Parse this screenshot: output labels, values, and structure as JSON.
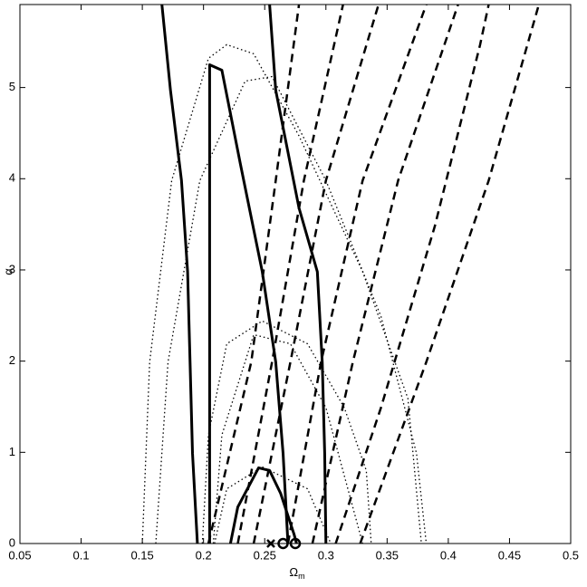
{
  "chart_data": {
    "type": "contour",
    "xlabel": {
      "text": "Ω",
      "subscript": "m"
    },
    "ylabel": "α",
    "xlim": [
      0.05,
      0.5
    ],
    "ylim": [
      0,
      5.91
    ],
    "xticks": [
      0.05,
      0.1,
      0.15,
      0.2,
      0.25,
      0.3,
      0.35,
      0.4,
      0.45,
      0.5
    ],
    "yticks": [
      0,
      1,
      2,
      3,
      4,
      5
    ],
    "series": [
      {
        "style": "solid",
        "x": [
          0.166,
          0.173,
          0.182,
          0.187,
          0.189,
          0.191,
          0.195
        ],
        "values": [
          5.91,
          4.97,
          3.98,
          2.98,
          1.99,
          0.99,
          0
        ]
      },
      {
        "style": "solid",
        "x": [
          0.205,
          0.205,
          0.205,
          0.215,
          0.23,
          0.248,
          0.259,
          0.265,
          0.269
        ],
        "values": [
          0,
          2.98,
          5.25,
          5.19,
          4.17,
          2.98,
          1.99,
          0.99,
          0
        ]
      },
      {
        "style": "solid",
        "x": [
          0.254,
          0.259,
          0.278,
          0.293,
          0.297,
          0.299,
          0.3
        ],
        "values": [
          5.91,
          4.97,
          3.68,
          2.98,
          1.99,
          0.99,
          0
        ]
      },
      {
        "style": "solid",
        "x": [
          0.222,
          0.228,
          0.245,
          0.254,
          0.263,
          0.274,
          0.276
        ],
        "values": [
          0,
          0.4,
          0.83,
          0.8,
          0.55,
          0.1,
          0
        ]
      },
      {
        "style": "dotted",
        "x": [
          0.15,
          0.156,
          0.174,
          0.204,
          0.219,
          0.241,
          0.278,
          0.33,
          0.367,
          0.378
        ],
        "values": [
          0,
          1.99,
          3.98,
          5.32,
          5.47,
          5.37,
          4.47,
          2.98,
          1.59,
          0
        ]
      },
      {
        "style": "dotted",
        "x": [
          0.161,
          0.171,
          0.197,
          0.234,
          0.256,
          0.3,
          0.345,
          0.374,
          0.382
        ],
        "values": [
          0,
          1.99,
          3.98,
          5.07,
          5.12,
          3.98,
          2.49,
          0.99,
          0
        ]
      },
      {
        "style": "dotted",
        "x": [
          0.199,
          0.204,
          0.219,
          0.248,
          0.285,
          0.315,
          0.333,
          0.337
        ],
        "values": [
          0,
          1.19,
          2.19,
          2.44,
          2.19,
          1.49,
          0.8,
          0
        ]
      },
      {
        "style": "dotted",
        "x": [
          0.208,
          0.215,
          0.241,
          0.271,
          0.3,
          0.33
        ],
        "values": [
          0,
          1.19,
          2.29,
          2.19,
          1.49,
          0
        ]
      },
      {
        "style": "dotted",
        "x": [
          0.209,
          0.219,
          0.248,
          0.285,
          0.304
        ],
        "values": [
          0,
          0.6,
          0.84,
          0.6,
          0
        ]
      },
      {
        "style": "dashed",
        "x": [
          0.204,
          0.239,
          0.259,
          0.278
        ],
        "values": [
          0,
          1.99,
          3.98,
          5.91
        ]
      },
      {
        "style": "dashed",
        "x": [
          0.228,
          0.256,
          0.282,
          0.314
        ],
        "values": [
          0,
          1.99,
          3.98,
          5.91
        ]
      },
      {
        "style": "dashed",
        "x": [
          0.241,
          0.271,
          0.3,
          0.343
        ],
        "values": [
          0,
          1.99,
          3.98,
          5.91
        ]
      },
      {
        "style": "dashed",
        "x": [
          0.269,
          0.296,
          0.33,
          0.382
        ],
        "values": [
          0,
          1.99,
          3.98,
          5.91
        ]
      },
      {
        "style": "dashed",
        "x": [
          0.289,
          0.322,
          0.359,
          0.408
        ],
        "values": [
          0,
          1.99,
          3.98,
          5.91
        ]
      },
      {
        "style": "dashed",
        "x": [
          0.308,
          0.345,
          0.389,
          0.426,
          0.433
        ],
        "values": [
          0,
          1.49,
          3.48,
          5.47,
          5.91
        ]
      },
      {
        "style": "dashed",
        "x": [
          0.328,
          0.382,
          0.433,
          0.474
        ],
        "values": [
          0,
          1.99,
          3.98,
          5.91
        ]
      },
      {
        "style": "marker-x",
        "x": [
          0.255
        ],
        "values": [
          0
        ]
      },
      {
        "style": "marker-o",
        "x": [
          0.265,
          0.275
        ],
        "values": [
          0,
          0
        ]
      }
    ]
  }
}
